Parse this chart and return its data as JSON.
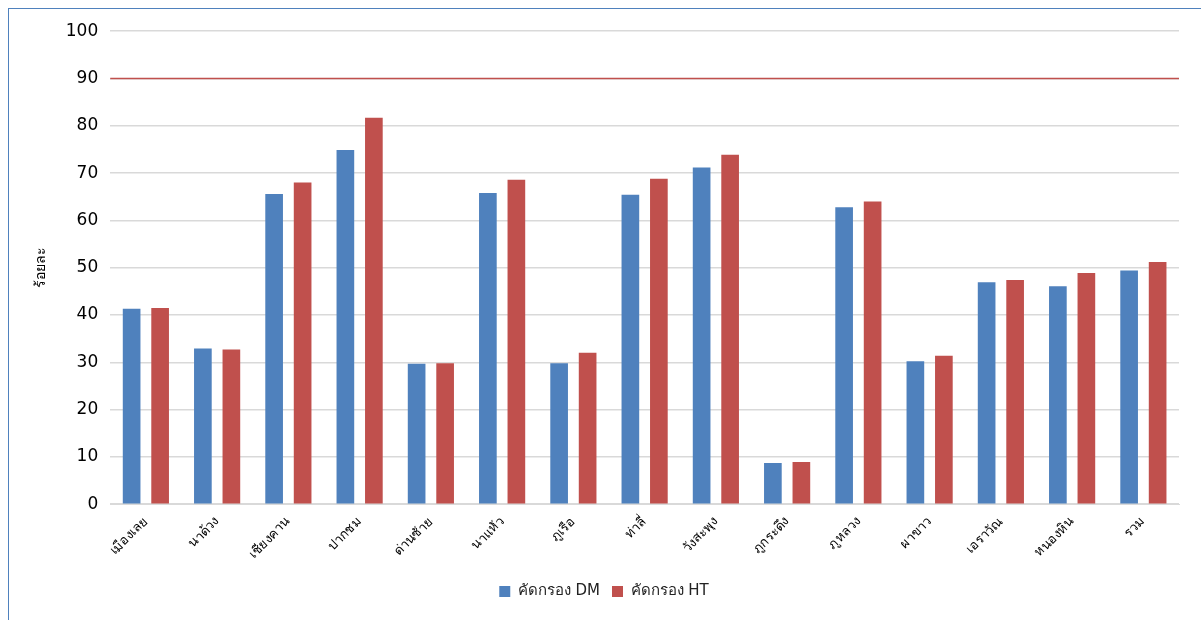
{
  "chart_data": {
    "type": "bar",
    "ylabel": "ร้อยละ",
    "categories": [
      "เมืองเลย",
      "นาด้วง",
      "เชียงคาน",
      "ปากชม",
      "ด่านซ้าย",
      "นาแห้ว",
      "ภูเรือ",
      "ท่าลี่",
      "วังสะพุง",
      "ภูกระดึง",
      "ภูหลวง",
      "ผาขาว",
      "เอราวัณ",
      "หนองหิน",
      "รวม"
    ],
    "series": [
      {
        "name": "คัดกรอง DM",
        "color": "#4f81bd",
        "values": [
          41.3,
          32.9,
          65.6,
          74.9,
          29.7,
          65.8,
          29.8,
          65.4,
          71.2,
          8.7,
          62.8,
          30.2,
          46.9,
          46.1,
          49.4
        ]
      },
      {
        "name": "คัดกรอง HT",
        "color": "#c0504d",
        "values": [
          41.5,
          32.7,
          68.0,
          81.7,
          29.8,
          68.6,
          32.0,
          68.8,
          73.9,
          8.9,
          64.0,
          31.4,
          47.4,
          48.9,
          51.2
        ]
      }
    ],
    "ylim": [
      0,
      100
    ],
    "yticks": [
      0,
      10,
      20,
      30,
      40,
      50,
      60,
      70,
      80,
      90,
      100
    ],
    "grid": "y",
    "legend": "bottom",
    "ref_lines": [
      {
        "axis": "y",
        "value": 90,
        "color": "#c0504d"
      }
    ]
  }
}
